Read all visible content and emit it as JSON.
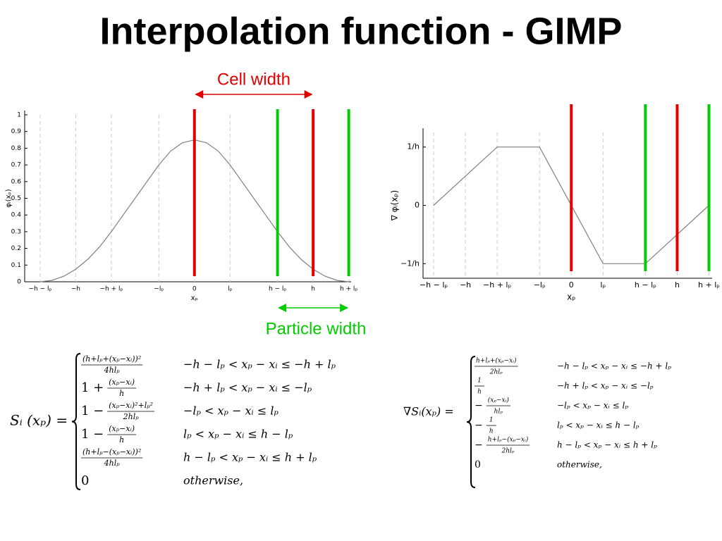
{
  "title": "Interpolation function - GIMP",
  "annotations": {
    "cell_width": {
      "text": "Cell width",
      "color": "#e00000"
    },
    "particle_width": {
      "text": "Particle width",
      "color": "#00cc00"
    }
  },
  "chart_data": [
    {
      "type": "line",
      "ylabel": "φᵢ(xₚ)",
      "xlabel": "xₚ",
      "xlim": [
        -1.43,
        1.32
      ],
      "ylim": [
        0,
        1
      ],
      "xticks": [
        {
          "value": -1.3,
          "label": "−h − lₚ"
        },
        {
          "value": -1,
          "label": "−h"
        },
        {
          "value": -0.7,
          "label": "−h + lₚ"
        },
        {
          "value": -0.3,
          "label": "−lₚ"
        },
        0,
        {
          "value": 0.3,
          "label": "lₚ"
        },
        {
          "value": 0.7,
          "label": "h − lₚ"
        },
        {
          "value": 1,
          "label": "h"
        },
        {
          "value": 1.3,
          "label": "h + lₚ"
        }
      ],
      "yticks": [
        0,
        0.1,
        0.2,
        0.3,
        0.4,
        0.5,
        0.6,
        0.7,
        0.8,
        0.9,
        1
      ],
      "x": [
        -1.3,
        -1.2,
        -1.1,
        -1.0,
        -0.9,
        -0.8,
        -0.7,
        -0.6,
        -0.5,
        -0.4,
        -0.3,
        -0.2,
        -0.1,
        0,
        0.1,
        0.2,
        0.3,
        0.4,
        0.5,
        0.6,
        0.7,
        0.8,
        0.9,
        1.0,
        1.1,
        1.2,
        1.3
      ],
      "values": [
        0,
        0.0083,
        0.0333,
        0.075,
        0.1333,
        0.2083,
        0.3,
        0.4,
        0.5,
        0.6,
        0.7,
        0.7833,
        0.8333,
        0.85,
        0.8333,
        0.7833,
        0.7,
        0.6,
        0.5,
        0.4,
        0.3,
        0.2083,
        0.1333,
        0.075,
        0.0333,
        0.0083,
        0
      ],
      "color": "#808080"
    },
    {
      "type": "line",
      "ylabel": "∇ φᵢ(xₚ)",
      "xlabel": "xₚ",
      "xlim": [
        -1.4,
        1.33
      ],
      "ylim": [
        -1.25,
        1.25
      ],
      "xticks": [
        {
          "value": -1.3,
          "label": "−h − lₚ"
        },
        {
          "value": -1,
          "label": "−h"
        },
        {
          "value": -0.7,
          "label": "−h + lₚ"
        },
        {
          "value": -0.3,
          "label": "−lₚ"
        },
        0,
        {
          "value": 0.3,
          "label": "lₚ"
        },
        {
          "value": 0.7,
          "label": "h − lₚ"
        },
        {
          "value": 1,
          "label": "h"
        },
        {
          "value": 1.3,
          "label": "h + lₚ"
        }
      ],
      "yticks": [
        {
          "value": -1,
          "label": "−1/h"
        },
        0,
        {
          "value": 1,
          "label": "1/h"
        }
      ],
      "x": [
        -1.3,
        -0.7,
        -0.3,
        0.3,
        0.7,
        1.3
      ],
      "values": [
        0,
        1,
        1,
        -1,
        -1,
        0
      ],
      "color": "#808080"
    }
  ],
  "equations": [
    {
      "lhs": "Sᵢ (xₚ) =",
      "rows": [
        {
          "num": "(h+lₚ+(xₚ−xᵢ))²",
          "den": "4hlₚ",
          "cond": "−h − lₚ < xₚ − xᵢ ≤ −h + lₚ"
        },
        {
          "prefix": "1 +",
          "num": "(xₚ−xᵢ)",
          "den": "h",
          "cond": "−h + lₚ < xₚ − xᵢ ≤ −lₚ"
        },
        {
          "prefix": "1 −",
          "num": "(xₚ−xᵢ)²+lₚ²",
          "den": "2hlₚ",
          "cond": "−lₚ < xₚ − xᵢ ≤ lₚ"
        },
        {
          "prefix": "1 −",
          "num": "(xₚ−xᵢ)",
          "den": "h",
          "cond": "lₚ < xₚ − xᵢ ≤ h − lₚ"
        },
        {
          "num": "(h+lₚ−(xₚ−xᵢ))²",
          "den": "4hlₚ",
          "cond": "h − lₚ < xₚ − xᵢ ≤ h + lₚ"
        },
        {
          "expr": "0",
          "cond": "otherwise,"
        }
      ]
    },
    {
      "lhs": "∇Sᵢ(xₚ) =",
      "rows": [
        {
          "num": "h+lₚ+(xₚ−xᵢ)",
          "den": "2hlₚ",
          "cond": "−h − lₚ < xₚ − xᵢ ≤ −h + lₚ"
        },
        {
          "num": "1",
          "den": "h",
          "cond": "−h + lₚ < xₚ − xᵢ ≤ −lₚ"
        },
        {
          "prefix": "−",
          "num": "(xₚ−xᵢ)",
          "den": "hlₚ",
          "cond": "−lₚ < xₚ − xᵢ ≤ lₚ"
        },
        {
          "prefix": "−",
          "num": "1",
          "den": "h",
          "cond": "lₚ < xₚ − xᵢ ≤ h − lₚ"
        },
        {
          "prefix": "−",
          "num": "h+lₚ−(xₚ−xᵢ)",
          "den": "2hlₚ",
          "cond": "h − lₚ < xₚ − xᵢ ≤ h + lₚ"
        },
        {
          "expr": "0",
          "cond": "otherwise,"
        }
      ]
    }
  ]
}
